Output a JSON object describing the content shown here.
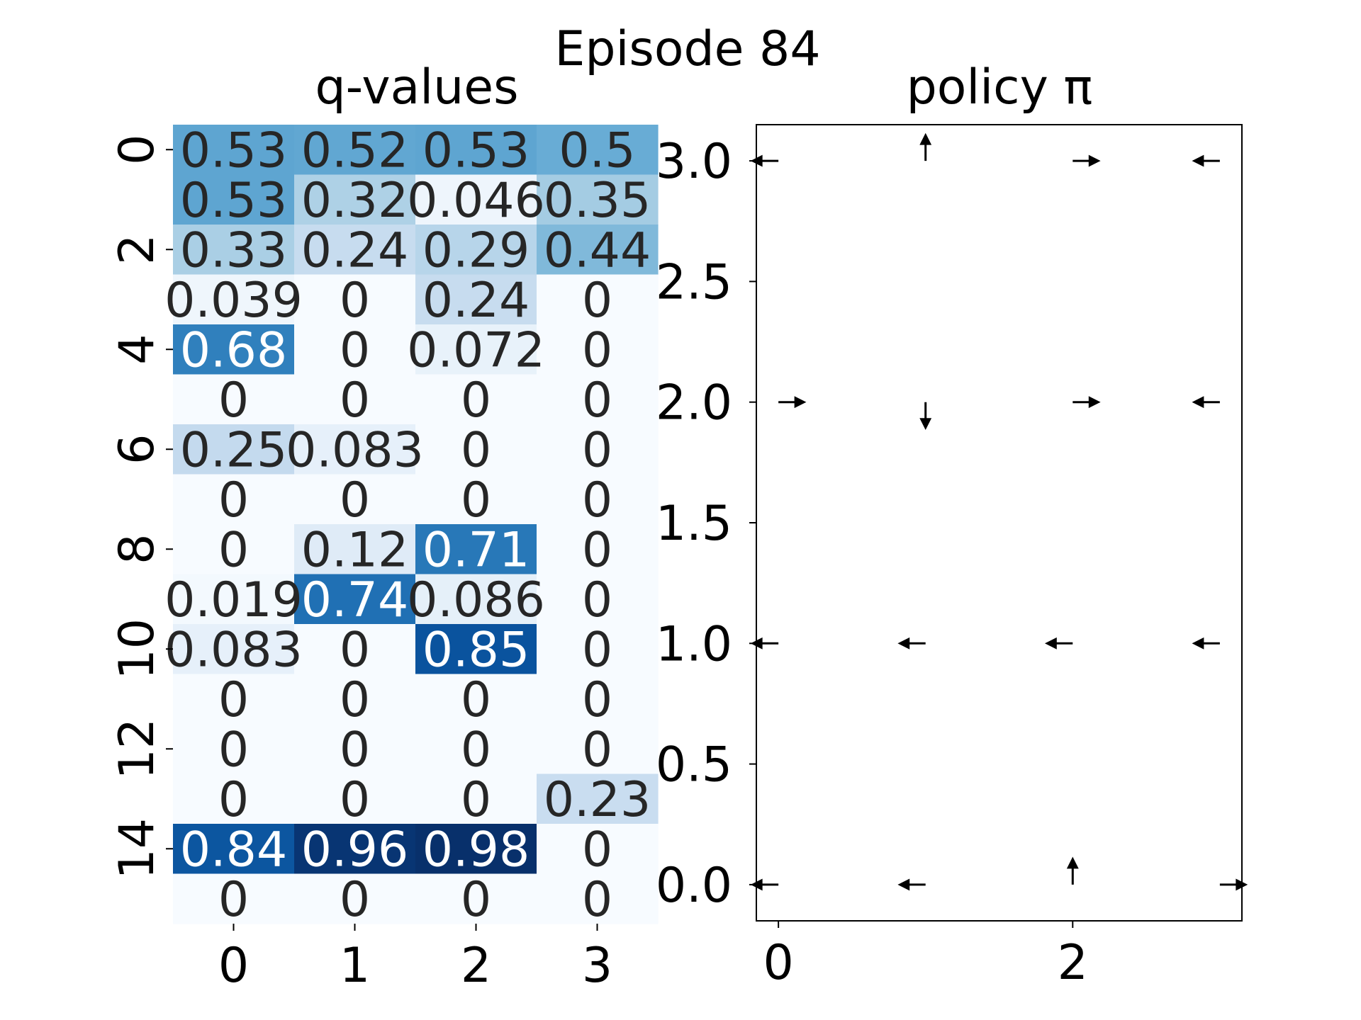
{
  "figure": {
    "suptitle": "Episode 84"
  },
  "colors": {
    "cmap": [
      "#f7fbff",
      "#deebf7",
      "#c6dbef",
      "#9ecae1",
      "#6baed6",
      "#4292c6",
      "#2171b5",
      "#08519c",
      "#08306b"
    ],
    "axis": "#000000",
    "annot_dark": "#262626",
    "annot_light": "#ffffff"
  },
  "chart_data": [
    {
      "type": "heatmap",
      "title": "q-values",
      "xlabel": "",
      "ylabel": "",
      "x_ticks": [
        "0",
        "1",
        "2",
        "3"
      ],
      "y_ticks": [
        "0",
        "2",
        "4",
        "6",
        "8",
        "10",
        "12",
        "14"
      ],
      "vmin": 0,
      "vmax": 0.98,
      "cells": [
        [
          0.53,
          0.52,
          0.53,
          0.5
        ],
        [
          0.53,
          0.32,
          0.046,
          0.35
        ],
        [
          0.33,
          0.24,
          0.29,
          0.44
        ],
        [
          0.039,
          0,
          0.24,
          0
        ],
        [
          0.68,
          0,
          0.072,
          0
        ],
        [
          0,
          0,
          0,
          0
        ],
        [
          0.25,
          0.083,
          0,
          0
        ],
        [
          0,
          0,
          0,
          0
        ],
        [
          0,
          0.12,
          0.71,
          0
        ],
        [
          0.019,
          0.74,
          0.086,
          0
        ],
        [
          0.083,
          0,
          0.85,
          0
        ],
        [
          0,
          0,
          0,
          0
        ],
        [
          0,
          0,
          0,
          0
        ],
        [
          0,
          0,
          0,
          0.23
        ],
        [
          0.84,
          0.96,
          0.98,
          0
        ],
        [
          0,
          0,
          0,
          0
        ]
      ],
      "annotations": [
        [
          "0.53",
          "0.52",
          "0.53",
          "0.5"
        ],
        [
          "0.53",
          "0.32",
          "0.046",
          "0.35"
        ],
        [
          "0.33",
          "0.24",
          "0.29",
          "0.44"
        ],
        [
          "0.039",
          "0",
          "0.24",
          "0"
        ],
        [
          "0.68",
          "0",
          "0.072",
          "0"
        ],
        [
          "0",
          "0",
          "0",
          "0"
        ],
        [
          "0.25",
          "0.083",
          "0",
          "0"
        ],
        [
          "0",
          "0",
          "0",
          "0"
        ],
        [
          "0",
          "0.12",
          "0.71",
          "0"
        ],
        [
          "0.019",
          "0.74",
          "0.086",
          "0"
        ],
        [
          "0.083",
          "0",
          "0.85",
          "0"
        ],
        [
          "0",
          "0",
          "0",
          "0"
        ],
        [
          "0",
          "0",
          "0",
          "0"
        ],
        [
          "0",
          "0",
          "0",
          "0.23"
        ],
        [
          "0.84",
          "0.96",
          "0.98",
          "0"
        ],
        [
          "0",
          "0",
          "0",
          "0"
        ]
      ]
    },
    {
      "type": "quiver",
      "title": "policy π",
      "xlabel": "",
      "ylabel": "",
      "xlim": [
        -0.15,
        3.15
      ],
      "ylim": [
        -0.15,
        3.15
      ],
      "x_ticks": [
        "0",
        "2"
      ],
      "x_tick_values": [
        0,
        2
      ],
      "y_ticks": [
        "0.0",
        "0.5",
        "1.0",
        "1.5",
        "2.0",
        "2.5",
        "3.0"
      ],
      "y_tick_values": [
        0,
        0.5,
        1,
        1.5,
        2,
        2.5,
        3
      ],
      "arrows": [
        {
          "x": 0,
          "y": 3,
          "dir": "left"
        },
        {
          "x": 1,
          "y": 3,
          "dir": "up"
        },
        {
          "x": 2,
          "y": 3,
          "dir": "right"
        },
        {
          "x": 3,
          "y": 3,
          "dir": "left"
        },
        {
          "x": 0,
          "y": 2,
          "dir": "right"
        },
        {
          "x": 1,
          "y": 2,
          "dir": "down"
        },
        {
          "x": 2,
          "y": 2,
          "dir": "right"
        },
        {
          "x": 3,
          "y": 2,
          "dir": "left"
        },
        {
          "x": 0,
          "y": 1,
          "dir": "left"
        },
        {
          "x": 1,
          "y": 1,
          "dir": "left"
        },
        {
          "x": 2,
          "y": 1,
          "dir": "left"
        },
        {
          "x": 3,
          "y": 1,
          "dir": "left"
        },
        {
          "x": 0,
          "y": 0,
          "dir": "left"
        },
        {
          "x": 1,
          "y": 0,
          "dir": "left"
        },
        {
          "x": 2,
          "y": 0,
          "dir": "up"
        },
        {
          "x": 3,
          "y": 0,
          "dir": "right"
        }
      ]
    }
  ]
}
